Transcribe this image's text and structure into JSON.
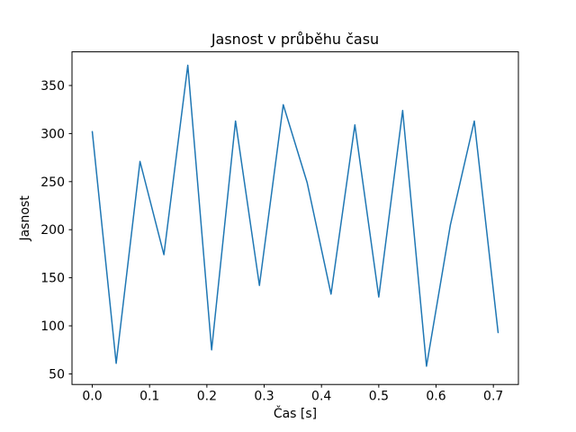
{
  "chart_data": {
    "type": "line",
    "title": "Jasnost v průběhu času",
    "xlabel": "Čas [s]",
    "ylabel": "Jasnost",
    "x": [
      0.0,
      0.0417,
      0.0833,
      0.125,
      0.1667,
      0.2083,
      0.25,
      0.2917,
      0.3333,
      0.375,
      0.4167,
      0.4583,
      0.5,
      0.5417,
      0.5833,
      0.625,
      0.6667,
      0.7083
    ],
    "y": [
      302,
      61,
      271,
      174,
      371,
      75,
      313,
      142,
      330,
      249,
      133,
      309,
      130,
      324,
      58,
      205,
      313,
      93
    ],
    "xlim": [
      -0.0354,
      0.7437
    ],
    "ylim": [
      39,
      385
    ],
    "xticks": [
      0.0,
      0.1,
      0.2,
      0.3,
      0.4,
      0.5,
      0.6,
      0.7
    ],
    "xtick_labels": [
      "0.0",
      "0.1",
      "0.2",
      "0.3",
      "0.4",
      "0.5",
      "0.6",
      "0.7"
    ],
    "yticks": [
      50,
      100,
      150,
      200,
      250,
      300,
      350
    ],
    "ytick_labels": [
      "50",
      "100",
      "150",
      "200",
      "250",
      "300",
      "350"
    ],
    "grid": false,
    "legend": null,
    "line_color": "#1f77b4",
    "axis_color": "#000000",
    "background_color": "#ffffff"
  }
}
